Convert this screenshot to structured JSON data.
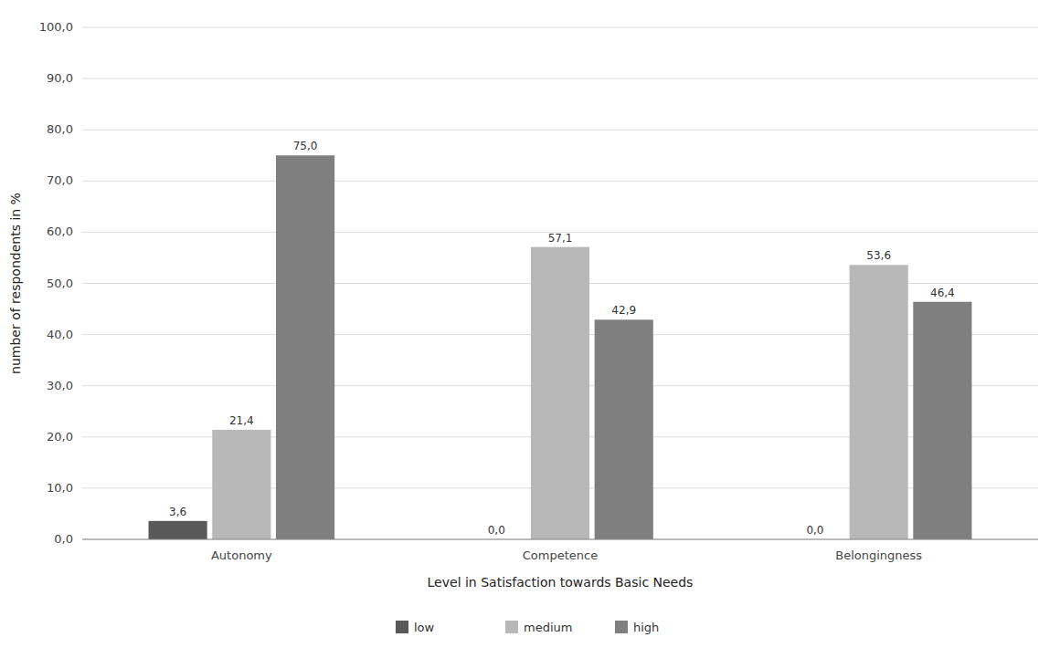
{
  "chart_data": {
    "type": "bar",
    "xlabel": "Level in Satisfaction towards Basic Needs",
    "ylabel": "number of respondents in %",
    "categories": [
      "Autonomy",
      "Competence",
      "Belongingness"
    ],
    "series": [
      {
        "name": "low",
        "color": "#595959",
        "values": [
          3.6,
          0.0,
          0.0
        ],
        "value_labels": [
          "3,6",
          "0,0",
          "0,0"
        ]
      },
      {
        "name": "medium",
        "color": "#b8b8b8",
        "values": [
          21.4,
          57.1,
          53.6
        ],
        "value_labels": [
          "21,4",
          "57,1",
          "53,6"
        ]
      },
      {
        "name": "high",
        "color": "#7f7f7f",
        "values": [
          75.0,
          42.9,
          46.4
        ],
        "value_labels": [
          "75,0",
          "42,9",
          "46,4"
        ]
      }
    ],
    "ylim": [
      0,
      100
    ],
    "yticks": [
      {
        "value": 0,
        "label": "0,0"
      },
      {
        "value": 10,
        "label": "10,0"
      },
      {
        "value": 20,
        "label": "20,0"
      },
      {
        "value": 30,
        "label": "30,0"
      },
      {
        "value": 40,
        "label": "40,0"
      },
      {
        "value": 50,
        "label": "50,0"
      },
      {
        "value": 60,
        "label": "60,0"
      },
      {
        "value": 70,
        "label": "70,0"
      },
      {
        "value": 80,
        "label": "80,0"
      },
      {
        "value": 90,
        "label": "90,0"
      },
      {
        "value": 100,
        "label": "100,0"
      }
    ],
    "grid": true,
    "legend": "bottom",
    "data_labels": true
  }
}
